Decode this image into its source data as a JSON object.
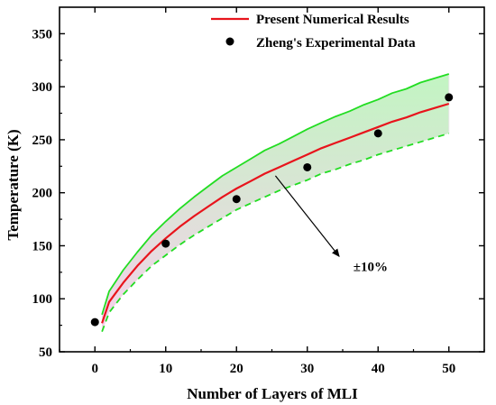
{
  "chart_data": {
    "type": "line",
    "title": "",
    "xlabel": "Number of Layers of MLI",
    "ylabel": "Temperature (K)",
    "xlim": [
      -5,
      55
    ],
    "ylim": [
      50,
      375
    ],
    "xticks": [
      0,
      10,
      20,
      30,
      40,
      50
    ],
    "yticks": [
      50,
      100,
      150,
      200,
      250,
      300,
      350
    ],
    "xtick_labels": [
      "0",
      "10",
      "20",
      "30",
      "40",
      "50"
    ],
    "ytick_labels": [
      "50",
      "100",
      "150",
      "200",
      "250",
      "300",
      "350"
    ],
    "grid": false,
    "legend_position": "top-right",
    "series": [
      {
        "name": "Present Numerical Results",
        "kind": "line",
        "color": "#e8141c",
        "x": [
          1,
          2,
          4,
          6,
          8,
          10,
          12,
          14,
          16,
          18,
          20,
          22,
          24,
          26,
          28,
          30,
          32,
          34,
          36,
          38,
          40,
          42,
          44,
          46,
          48,
          50
        ],
        "y": [
          77,
          97,
          115,
          131,
          145,
          157,
          168,
          178,
          187,
          196,
          204,
          211,
          218,
          224,
          230,
          236,
          242,
          247,
          252,
          257,
          262,
          267,
          271,
          276,
          280,
          284
        ]
      },
      {
        "name": "Zheng's Experimental Data",
        "kind": "scatter",
        "color": "#000000",
        "x": [
          0,
          10,
          20,
          30,
          40,
          50
        ],
        "y": [
          78,
          152,
          194,
          224,
          256,
          290
        ]
      },
      {
        "kind": "line",
        "color": "#22dd22",
        "x": [
          1,
          2,
          4,
          6,
          8,
          10,
          12,
          14,
          16,
          18,
          20,
          22,
          24,
          26,
          28,
          30,
          32,
          34,
          36,
          38,
          40,
          42,
          44,
          46,
          48,
          50
        ],
        "y": [
          85,
          107,
          127,
          144,
          160,
          173,
          185,
          196,
          206,
          216,
          224,
          232,
          240,
          246,
          253,
          260,
          266,
          272,
          277,
          283,
          288,
          294,
          298,
          304,
          308,
          312
        ]
      },
      {
        "kind": "line",
        "color": "#22dd22",
        "style": "dashed",
        "x": [
          1,
          2,
          4,
          6,
          8,
          10,
          12,
          14,
          16,
          18,
          20,
          22,
          24,
          26,
          28,
          30,
          32,
          34,
          36,
          38,
          40,
          42,
          44,
          46,
          48,
          50
        ],
        "y": [
          69,
          87,
          104,
          118,
          131,
          141,
          151,
          160,
          168,
          176,
          184,
          190,
          196,
          202,
          207,
          212,
          218,
          222,
          227,
          231,
          236,
          240,
          244,
          248,
          252,
          256
        ]
      }
    ],
    "annotation": {
      "text": "±10%",
      "arrow_from": [
        25.5,
        216
      ],
      "arrow_to": [
        34.5,
        140
      ],
      "text_at": [
        36.5,
        126
      ]
    },
    "colors": {
      "fill_top": "#c2f5c2",
      "fill_bottom": "#f6d0ec",
      "axis": "#000000"
    }
  }
}
